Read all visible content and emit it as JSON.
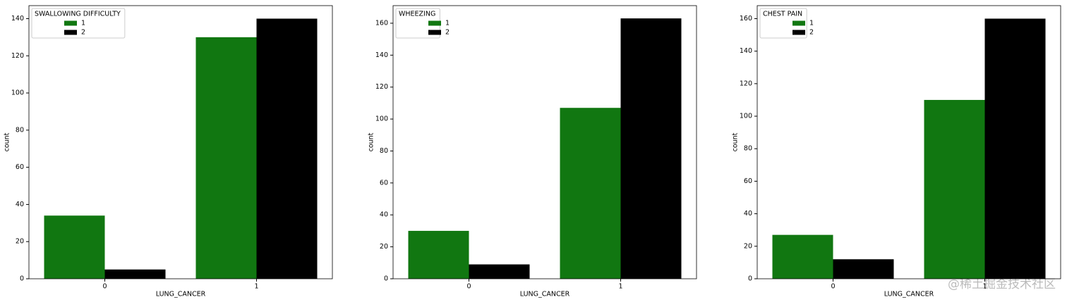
{
  "chart_data": [
    {
      "type": "bar",
      "legend_title": "SWALLOWING DIFFICULTY",
      "xlabel": "LUNG_CANCER",
      "ylabel": "count",
      "categories": [
        "0",
        "1"
      ],
      "series": [
        {
          "name": "1",
          "color": "#117711",
          "values": [
            34,
            130
          ]
        },
        {
          "name": "2",
          "color": "#000000",
          "values": [
            5,
            140
          ]
        }
      ],
      "ylim": [
        0,
        147
      ],
      "yticks": [
        0,
        20,
        40,
        60,
        80,
        100,
        120,
        140
      ],
      "legend": "upper left"
    },
    {
      "type": "bar",
      "legend_title": "WHEEZING",
      "xlabel": "LUNG_CANCER",
      "ylabel": "count",
      "categories": [
        "0",
        "1"
      ],
      "series": [
        {
          "name": "1",
          "color": "#117711",
          "values": [
            30,
            107
          ]
        },
        {
          "name": "2",
          "color": "#000000",
          "values": [
            9,
            163
          ]
        }
      ],
      "ylim": [
        0,
        171
      ],
      "yticks": [
        0,
        20,
        40,
        60,
        80,
        100,
        120,
        140,
        160
      ],
      "legend": "upper left"
    },
    {
      "type": "bar",
      "legend_title": "CHEST PAIN",
      "xlabel": "LUNG_CANCER",
      "ylabel": "count",
      "categories": [
        "0",
        "1"
      ],
      "series": [
        {
          "name": "1",
          "color": "#117711",
          "values": [
            27,
            110
          ]
        },
        {
          "name": "2",
          "color": "#000000",
          "values": [
            12,
            160
          ]
        }
      ],
      "ylim": [
        0,
        168
      ],
      "yticks": [
        0,
        20,
        40,
        60,
        80,
        100,
        120,
        140,
        160
      ],
      "legend": "upper left"
    }
  ],
  "watermark": "@稀土掘金技术社区"
}
